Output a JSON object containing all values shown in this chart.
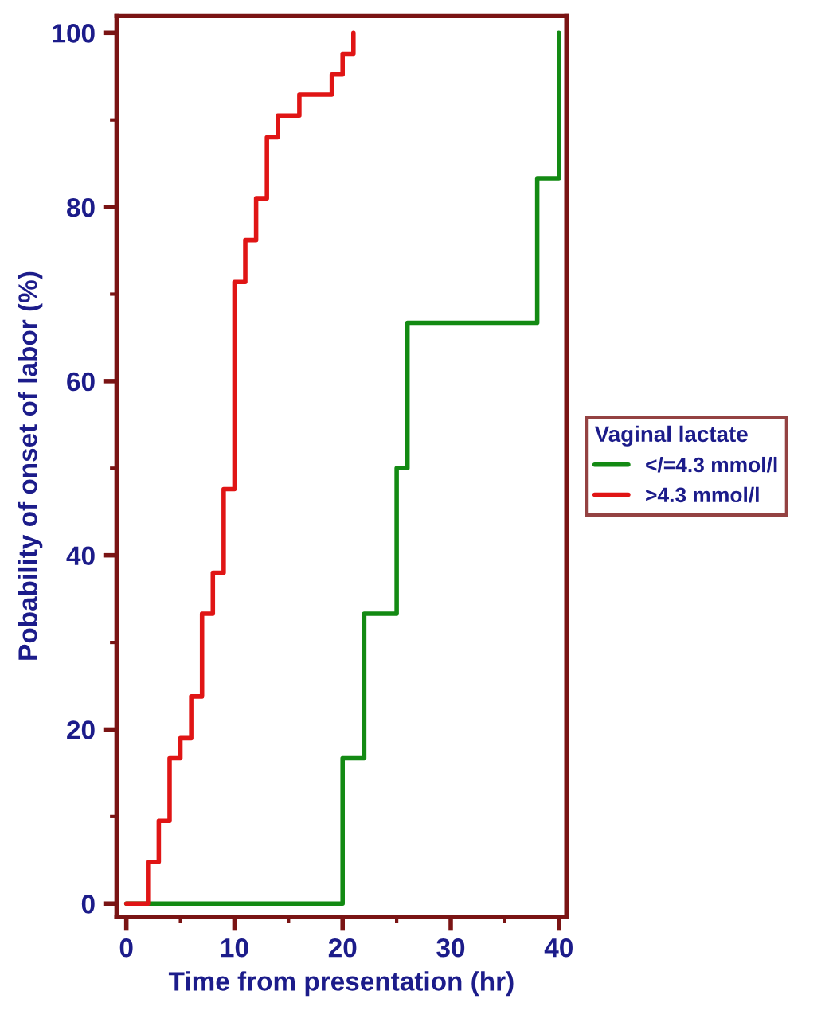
{
  "chart_data": {
    "type": "step",
    "xlabel": "Time from presentation (hr)",
    "ylabel": "Pobability of onset of labor (%)",
    "legend_title": "Vaginal lactate",
    "xlim": [
      -0.9,
      40.7
    ],
    "ylim": [
      -1.5,
      102
    ],
    "xticks": [
      0,
      10,
      20,
      30,
      40
    ],
    "yticks": [
      0,
      20,
      40,
      60,
      80,
      100
    ],
    "grid": false,
    "legend": "right",
    "marker": "none",
    "line_style": "solid",
    "series": [
      {
        "name": "</=4.3 mmol/l",
        "color": "#138a13",
        "x": [
          0,
          20,
          22,
          25,
          26,
          38,
          40
        ],
        "values": [
          0,
          16.7,
          33.3,
          50,
          66.7,
          83.3,
          100
        ]
      },
      {
        "name": ">4.3 mmol/l",
        "color": "#e01515",
        "x": [
          0,
          2,
          3,
          4,
          5,
          6,
          7,
          8,
          9,
          10,
          11,
          12,
          13,
          14,
          16,
          19,
          20,
          21
        ],
        "values": [
          0,
          4.8,
          9.5,
          16.7,
          19,
          23.8,
          33.3,
          38,
          47.6,
          71.4,
          76.2,
          81,
          88,
          90.5,
          92.9,
          95.2,
          97.6,
          100
        ]
      }
    ]
  }
}
